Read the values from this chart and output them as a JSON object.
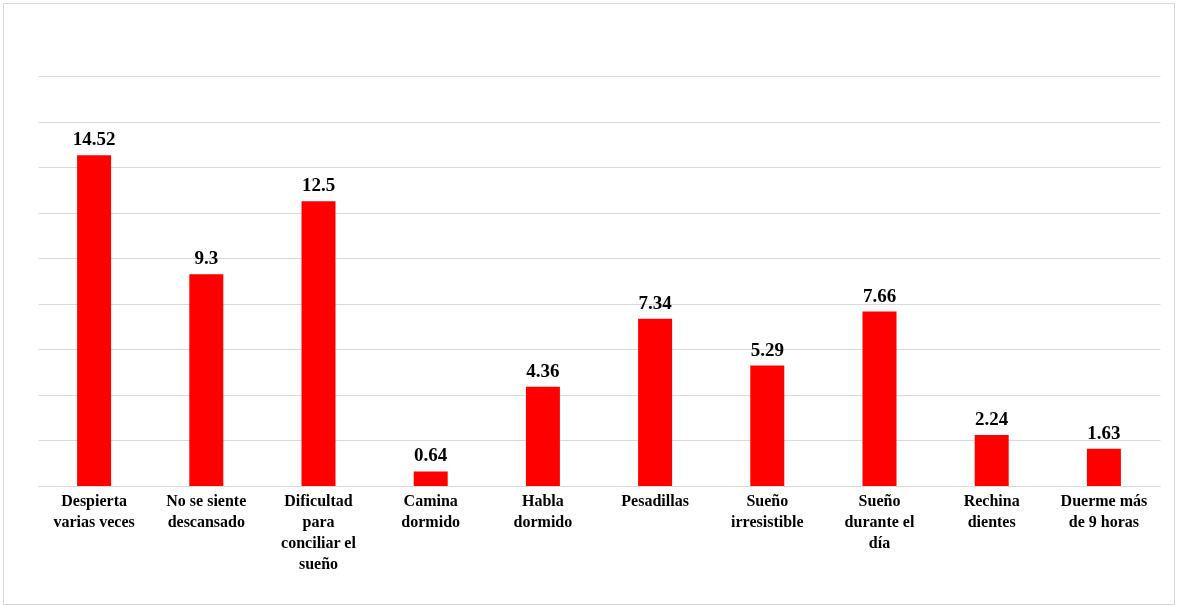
{
  "chart_data": {
    "type": "bar",
    "categories": [
      "Despierta varias veces",
      "No se siente descansado",
      "Dificultad para conciliar el sueño",
      "Camina dormido",
      "Habla dormido",
      "Pesadillas",
      "Sueño irresistible",
      "Sueño durante el día",
      "Rechina dientes",
      "Duerme más de 9 horas"
    ],
    "values": [
      14.52,
      9.3,
      12.5,
      0.64,
      4.36,
      7.34,
      5.29,
      7.66,
      2.24,
      1.63
    ],
    "color": "#ff0000",
    "ylim": [
      0,
      18
    ],
    "yticks": [
      {
        "value": 0,
        "label": null
      },
      {
        "value": 2,
        "label": null
      },
      {
        "value": 4,
        "label": null
      },
      {
        "value": 6,
        "label": null
      },
      {
        "value": 8,
        "label": null
      },
      {
        "value": 10,
        "label": null
      },
      {
        "value": 12,
        "label": null
      },
      {
        "value": 14,
        "label": null
      },
      {
        "value": 16,
        "label": null
      },
      {
        "value": 18,
        "label": null
      }
    ],
    "grid": "y",
    "tick_labels": "x",
    "data_labels": true
  }
}
